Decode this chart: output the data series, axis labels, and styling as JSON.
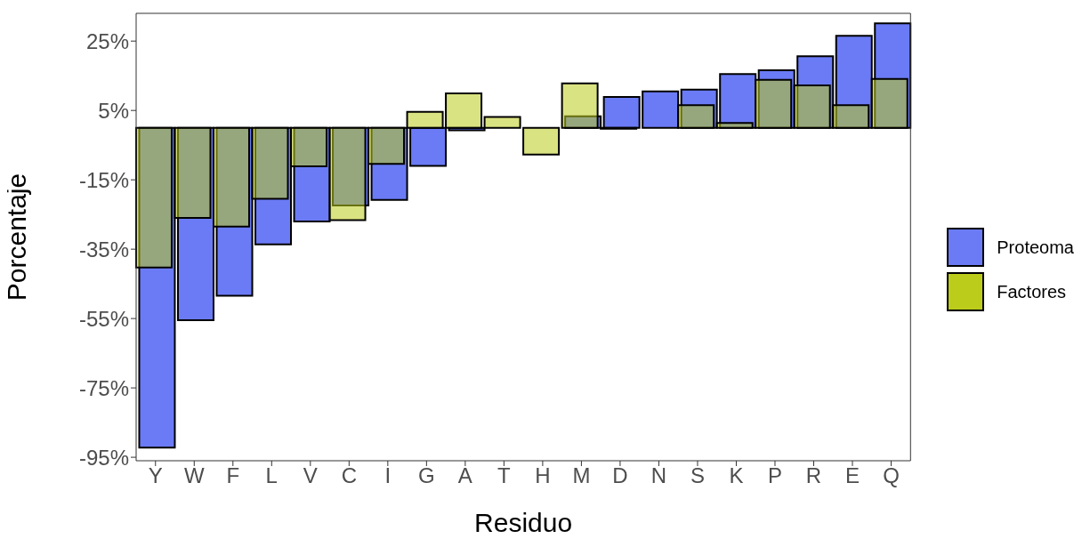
{
  "chart_data": {
    "type": "bar",
    "xlabel": "Residuo",
    "ylabel": "Porcentaje",
    "categories": [
      "Y",
      "W",
      "F",
      "L",
      "V",
      "C",
      "I",
      "G",
      "A",
      "T",
      "H",
      "M",
      "D",
      "N",
      "S",
      "K",
      "P",
      "R",
      "E",
      "Q"
    ],
    "series": [
      {
        "name": "Proteoma",
        "color": "#6b7bf5",
        "values": [
          -92.2,
          -55.5,
          -48.4,
          -33.6,
          -27.0,
          -22.4,
          -20.8,
          -11.0,
          -0.7,
          0,
          0,
          3.3,
          8.9,
          10.5,
          11.0,
          15.5,
          16.6,
          20.6,
          26.5,
          30.1
        ]
      },
      {
        "name": "Factores",
        "color": "#bccc1a",
        "values": [
          -40.3,
          -26.0,
          -28.5,
          -20.5,
          -11.1,
          -26.6,
          -10.4,
          4.6,
          9.9,
          3.1,
          -7.7,
          12.8,
          -0.3,
          0,
          6.5,
          1.4,
          13.8,
          12.2,
          6.5,
          14.1
        ]
      }
    ],
    "ylim": [
      -96,
      33
    ],
    "yticks": [
      {
        "value": -95,
        "label": "-95%"
      },
      {
        "value": -75,
        "label": "-75%"
      },
      {
        "value": -55,
        "label": "-55%"
      },
      {
        "value": -35,
        "label": "-35%"
      },
      {
        "value": -15,
        "label": "-15%"
      },
      {
        "value": 5,
        "label": "5%"
      },
      {
        "value": 25,
        "label": "25%"
      }
    ],
    "legend": "right",
    "grid": false
  }
}
